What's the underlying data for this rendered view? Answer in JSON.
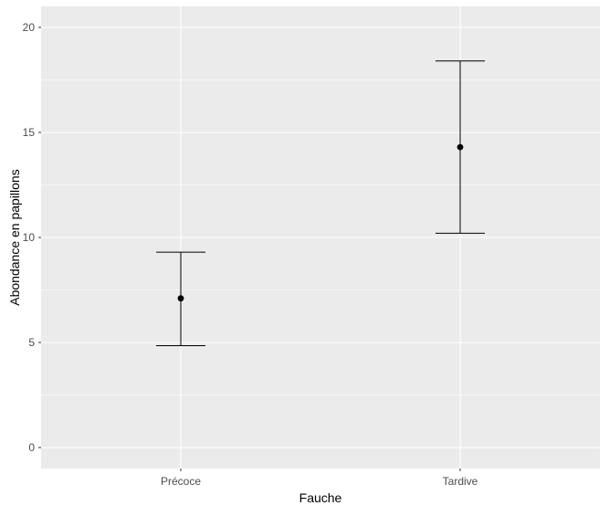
{
  "chart_data": {
    "type": "errorbar",
    "title": "",
    "xlabel": "Fauche",
    "ylabel": "Abondance en papillons",
    "categories": [
      "Précoce",
      "Tardive"
    ],
    "series": [
      {
        "values": [
          7.1,
          14.3
        ],
        "lower": [
          4.85,
          10.2
        ],
        "upper": [
          9.3,
          18.4
        ]
      }
    ],
    "ylim": [
      -1,
      21
    ],
    "yticks": [
      0,
      5,
      10,
      15,
      20
    ],
    "grid": true,
    "colors": {
      "panel": "#ebebeb",
      "grid_major": "#ffffff",
      "marks": "#000000",
      "tick_text": "#4d4d4d"
    }
  }
}
